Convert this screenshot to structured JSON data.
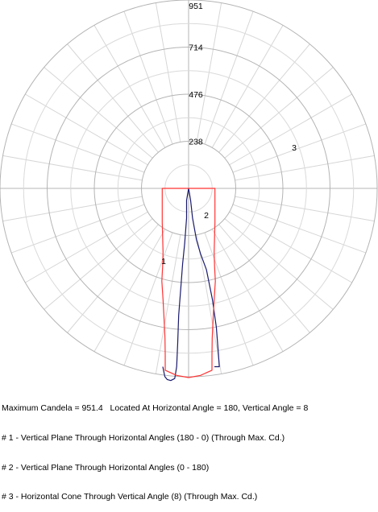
{
  "chart_data": {
    "type": "polar",
    "radial_ticks": [
      "238",
      "476",
      "714",
      "951"
    ],
    "rmax": 951,
    "curve_labels": [
      "1",
      "2",
      "3"
    ],
    "series": [
      {
        "id": "1",
        "color": "#1a1a6e",
        "points": [
          [
            0,
            0
          ],
          [
            -10,
            60
          ],
          [
            -10,
            150
          ],
          [
            -20,
            280
          ],
          [
            -30,
            380
          ],
          [
            -40,
            510
          ],
          [
            -50,
            640
          ],
          [
            -55,
            780
          ],
          [
            -60,
            900
          ],
          [
            -70,
            960
          ],
          [
            -90,
            970
          ],
          [
            -108,
            965
          ],
          [
            -120,
            950
          ],
          [
            -130,
            900
          ]
        ]
      },
      {
        "id": "2",
        "color": "#1a1a6e",
        "points": [
          [
            0,
            0
          ],
          [
            10,
            60
          ],
          [
            20,
            150
          ],
          [
            40,
            260
          ],
          [
            60,
            330
          ],
          [
            90,
            410
          ],
          [
            120,
            560
          ],
          [
            140,
            700
          ],
          [
            150,
            830
          ],
          [
            155,
            900
          ],
          [
            130,
            900
          ]
        ]
      },
      {
        "id": "3",
        "color": "#ff3333",
        "closed": true,
        "points": [
          [
            0,
            955
          ],
          [
            60,
            944
          ],
          [
            118,
            918
          ],
          [
            118,
            840
          ],
          [
            119,
            755
          ],
          [
            124,
            654
          ],
          [
            129,
            562
          ],
          [
            135,
            468
          ],
          [
            131,
            392
          ],
          [
            129,
            323
          ],
          [
            131,
            245
          ],
          [
            133,
            173
          ],
          [
            133,
            107
          ],
          [
            133,
            0
          ],
          [
            -133,
            0
          ],
          [
            -133,
            107
          ],
          [
            -133,
            173
          ],
          [
            -131,
            245
          ],
          [
            -129,
            323
          ],
          [
            -131,
            392
          ],
          [
            -135,
            468
          ],
          [
            -129,
            562
          ],
          [
            -124,
            654
          ],
          [
            -119,
            755
          ],
          [
            -118,
            840
          ],
          [
            -118,
            918
          ],
          [
            -60,
            944
          ]
        ]
      }
    ]
  },
  "legend": {
    "line1": "Maximum Candela = 951.4   Located At Horizontal Angle = 180, Vertical Angle = 8",
    "line2": "# 1 - Vertical Plane Through Horizontal Angles (180 - 0) (Through Max. Cd.)",
    "line3": "# 2 - Vertical Plane Through Horizontal Angles (0 - 180)",
    "line4": "# 3 - Horizontal Cone Through Vertical Angle (8) (Through Max. Cd.)"
  }
}
